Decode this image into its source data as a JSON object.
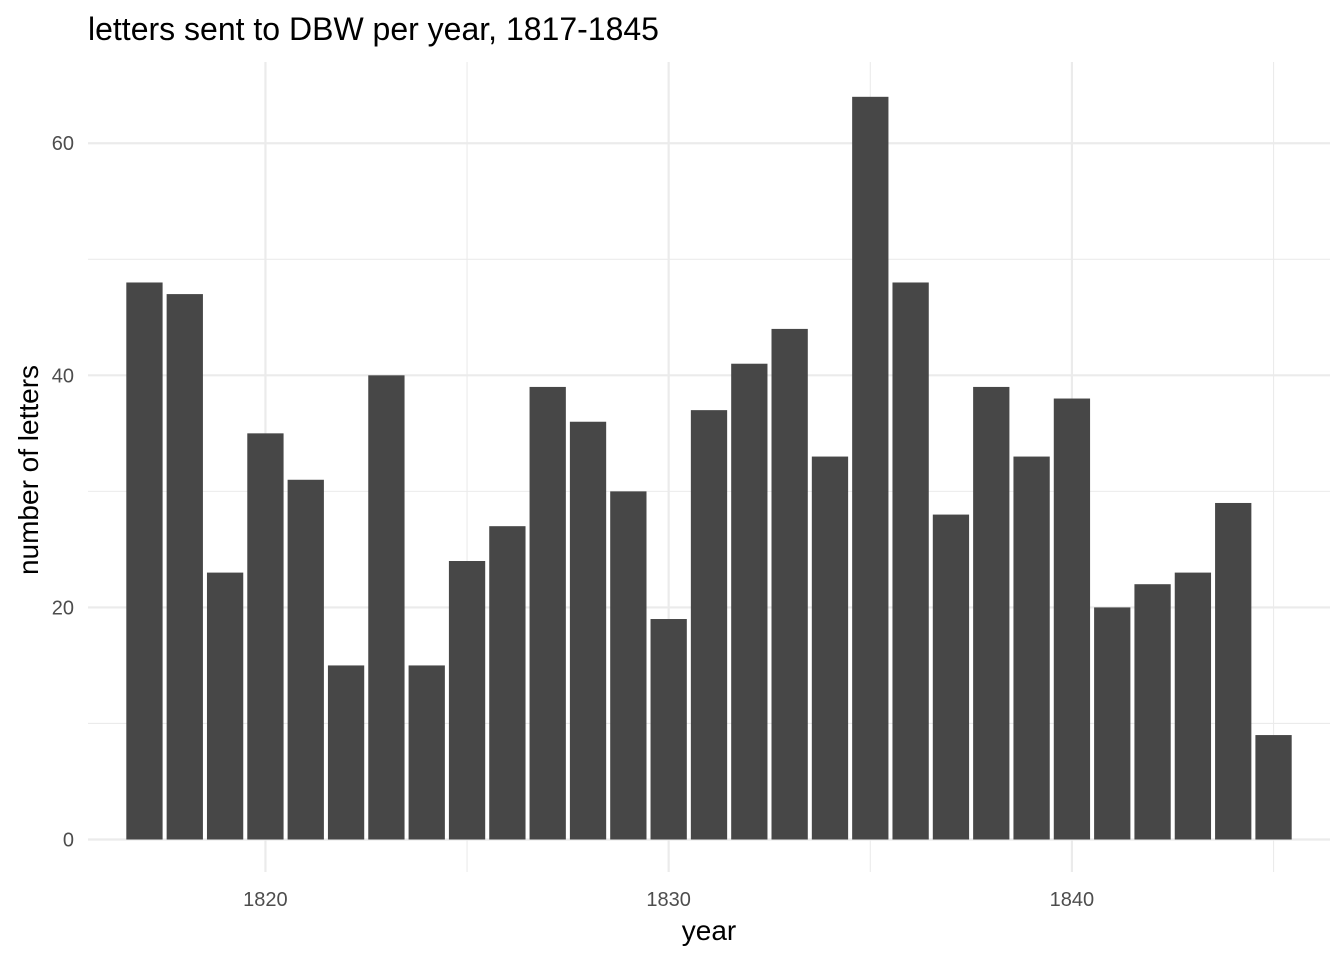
{
  "chart_data": {
    "type": "bar",
    "title": "letters sent to DBW per year, 1817-1845",
    "xlabel": "year",
    "ylabel": "number of letters",
    "x": [
      1817,
      1818,
      1819,
      1820,
      1821,
      1822,
      1823,
      1824,
      1825,
      1826,
      1827,
      1828,
      1829,
      1830,
      1831,
      1832,
      1833,
      1834,
      1835,
      1836,
      1837,
      1838,
      1839,
      1840,
      1841,
      1842,
      1843,
      1844,
      1845
    ],
    "values": [
      48,
      47,
      23,
      35,
      31,
      15,
      40,
      15,
      24,
      27,
      39,
      36,
      30,
      19,
      37,
      41,
      44,
      33,
      64,
      48,
      28,
      39,
      33,
      38,
      20,
      22,
      23,
      29,
      9
    ],
    "xticks": [
      "1820",
      "1830",
      "1840"
    ],
    "yticks": [
      "0",
      "20",
      "40",
      "60"
    ],
    "xlim": [
      1815.6,
      1846.4
    ],
    "ylim": [
      -2.8,
      67
    ],
    "grid": true,
    "bar_color": "#474747",
    "grid_color": "#ebebeb",
    "background": "#ffffff"
  }
}
